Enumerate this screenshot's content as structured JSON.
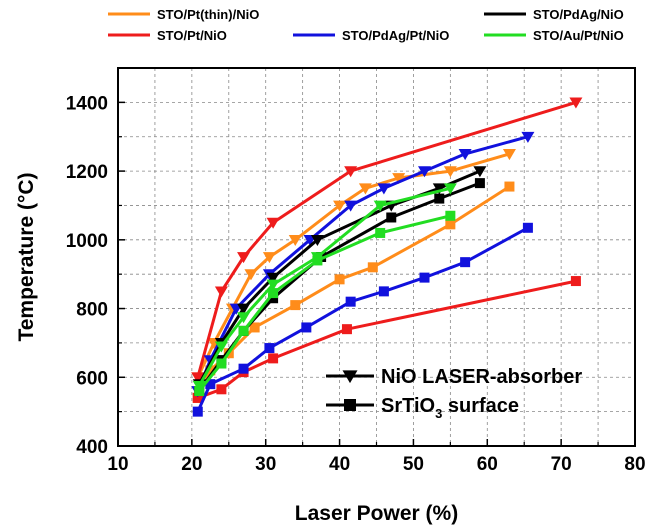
{
  "chart_data": {
    "type": "line",
    "xlabel": "Laser Power (%)",
    "ylabel": "Temperature (°C)",
    "xlim": [
      10,
      80
    ],
    "ylim": [
      400,
      1500
    ],
    "xticks": [
      10,
      20,
      30,
      40,
      50,
      60,
      70,
      80
    ],
    "yticks": [
      400,
      600,
      800,
      1000,
      1200,
      1400
    ],
    "x_tick_labels": [
      "10",
      "20",
      "30",
      "40",
      "50",
      "60",
      "70",
      "80"
    ],
    "y_tick_labels": [
      "400",
      "600",
      "800",
      "1000",
      "1200",
      "1400"
    ],
    "grid": true,
    "legend_position": "top",
    "series": [
      {
        "name": "STO/Pt(thin)/NiO",
        "color": "#ff8c1a",
        "nio": [
          [
            20.8,
            600
          ],
          [
            23,
            700
          ],
          [
            25.5,
            800
          ],
          [
            28,
            900
          ],
          [
            30.5,
            950
          ],
          [
            34,
            1000
          ],
          [
            40,
            1100
          ],
          [
            43.5,
            1150
          ],
          [
            48,
            1180
          ],
          [
            55,
            1200
          ],
          [
            63,
            1250
          ]
        ],
        "sto": [
          [
            20.8,
            540
          ],
          [
            22.5,
            620
          ],
          [
            25,
            670
          ],
          [
            28.5,
            745
          ],
          [
            34,
            810
          ],
          [
            40,
            885
          ],
          [
            44.5,
            920
          ],
          [
            55,
            1045
          ],
          [
            63,
            1155
          ]
        ]
      },
      {
        "name": "STO/Pt/NiO",
        "color": "#ee1c1c",
        "nio": [
          [
            20.8,
            600
          ],
          [
            24,
            850
          ],
          [
            27,
            950
          ],
          [
            31,
            1050
          ],
          [
            41.5,
            1200
          ],
          [
            72,
            1400
          ]
        ],
        "sto": [
          [
            20.8,
            540
          ],
          [
            24,
            565
          ],
          [
            27,
            615
          ],
          [
            31,
            655
          ],
          [
            41,
            740
          ],
          [
            72,
            880
          ]
        ]
      },
      {
        "name": "STO/PdAg/Pt/NiO",
        "color": "#1111dd",
        "nio": [
          [
            20.8,
            560
          ],
          [
            22.5,
            650
          ],
          [
            26,
            800
          ],
          [
            30.5,
            900
          ],
          [
            36,
            1000
          ],
          [
            41.5,
            1100
          ],
          [
            46,
            1150
          ],
          [
            51.5,
            1200
          ],
          [
            57,
            1250
          ],
          [
            65.5,
            1300
          ]
        ],
        "sto": [
          [
            20.8,
            500
          ],
          [
            22.5,
            580
          ],
          [
            27,
            625
          ],
          [
            30.5,
            685
          ],
          [
            35.5,
            745
          ],
          [
            41.5,
            820
          ],
          [
            46,
            850
          ],
          [
            51.5,
            890
          ],
          [
            57,
            935
          ],
          [
            65.5,
            1035
          ]
        ]
      },
      {
        "name": "STO/PdAg/NiO",
        "color": "#000000",
        "nio": [
          [
            21,
            580
          ],
          [
            24,
            700
          ],
          [
            27,
            800
          ],
          [
            31,
            890
          ],
          [
            37,
            1000
          ],
          [
            47,
            1100
          ],
          [
            53.5,
            1150
          ],
          [
            59,
            1200
          ]
        ],
        "sto": [
          [
            21,
            560
          ],
          [
            24,
            650
          ],
          [
            27,
            735
          ],
          [
            31,
            830
          ],
          [
            37.5,
            950
          ],
          [
            47,
            1065
          ],
          [
            53.5,
            1120
          ],
          [
            59,
            1165
          ]
        ]
      },
      {
        "name": "STO/Au/Pt/NiO",
        "color": "#22dd22",
        "nio": [
          [
            21,
            575
          ],
          [
            24,
            690
          ],
          [
            27,
            775
          ],
          [
            31,
            870
          ],
          [
            37,
            950
          ],
          [
            45.5,
            1100
          ],
          [
            55,
            1150
          ]
        ],
        "sto": [
          [
            21,
            560
          ],
          [
            24,
            640
          ],
          [
            27,
            735
          ],
          [
            31,
            845
          ],
          [
            37,
            940
          ],
          [
            45.5,
            1020
          ],
          [
            55,
            1070
          ]
        ]
      }
    ],
    "inset_legend": [
      {
        "marker": "triangle-down",
        "label": "NiO LASER-absorber"
      },
      {
        "marker": "square",
        "label_main": "SrTiO",
        "label_sub": "3",
        "label_tail": " surface"
      }
    ]
  }
}
